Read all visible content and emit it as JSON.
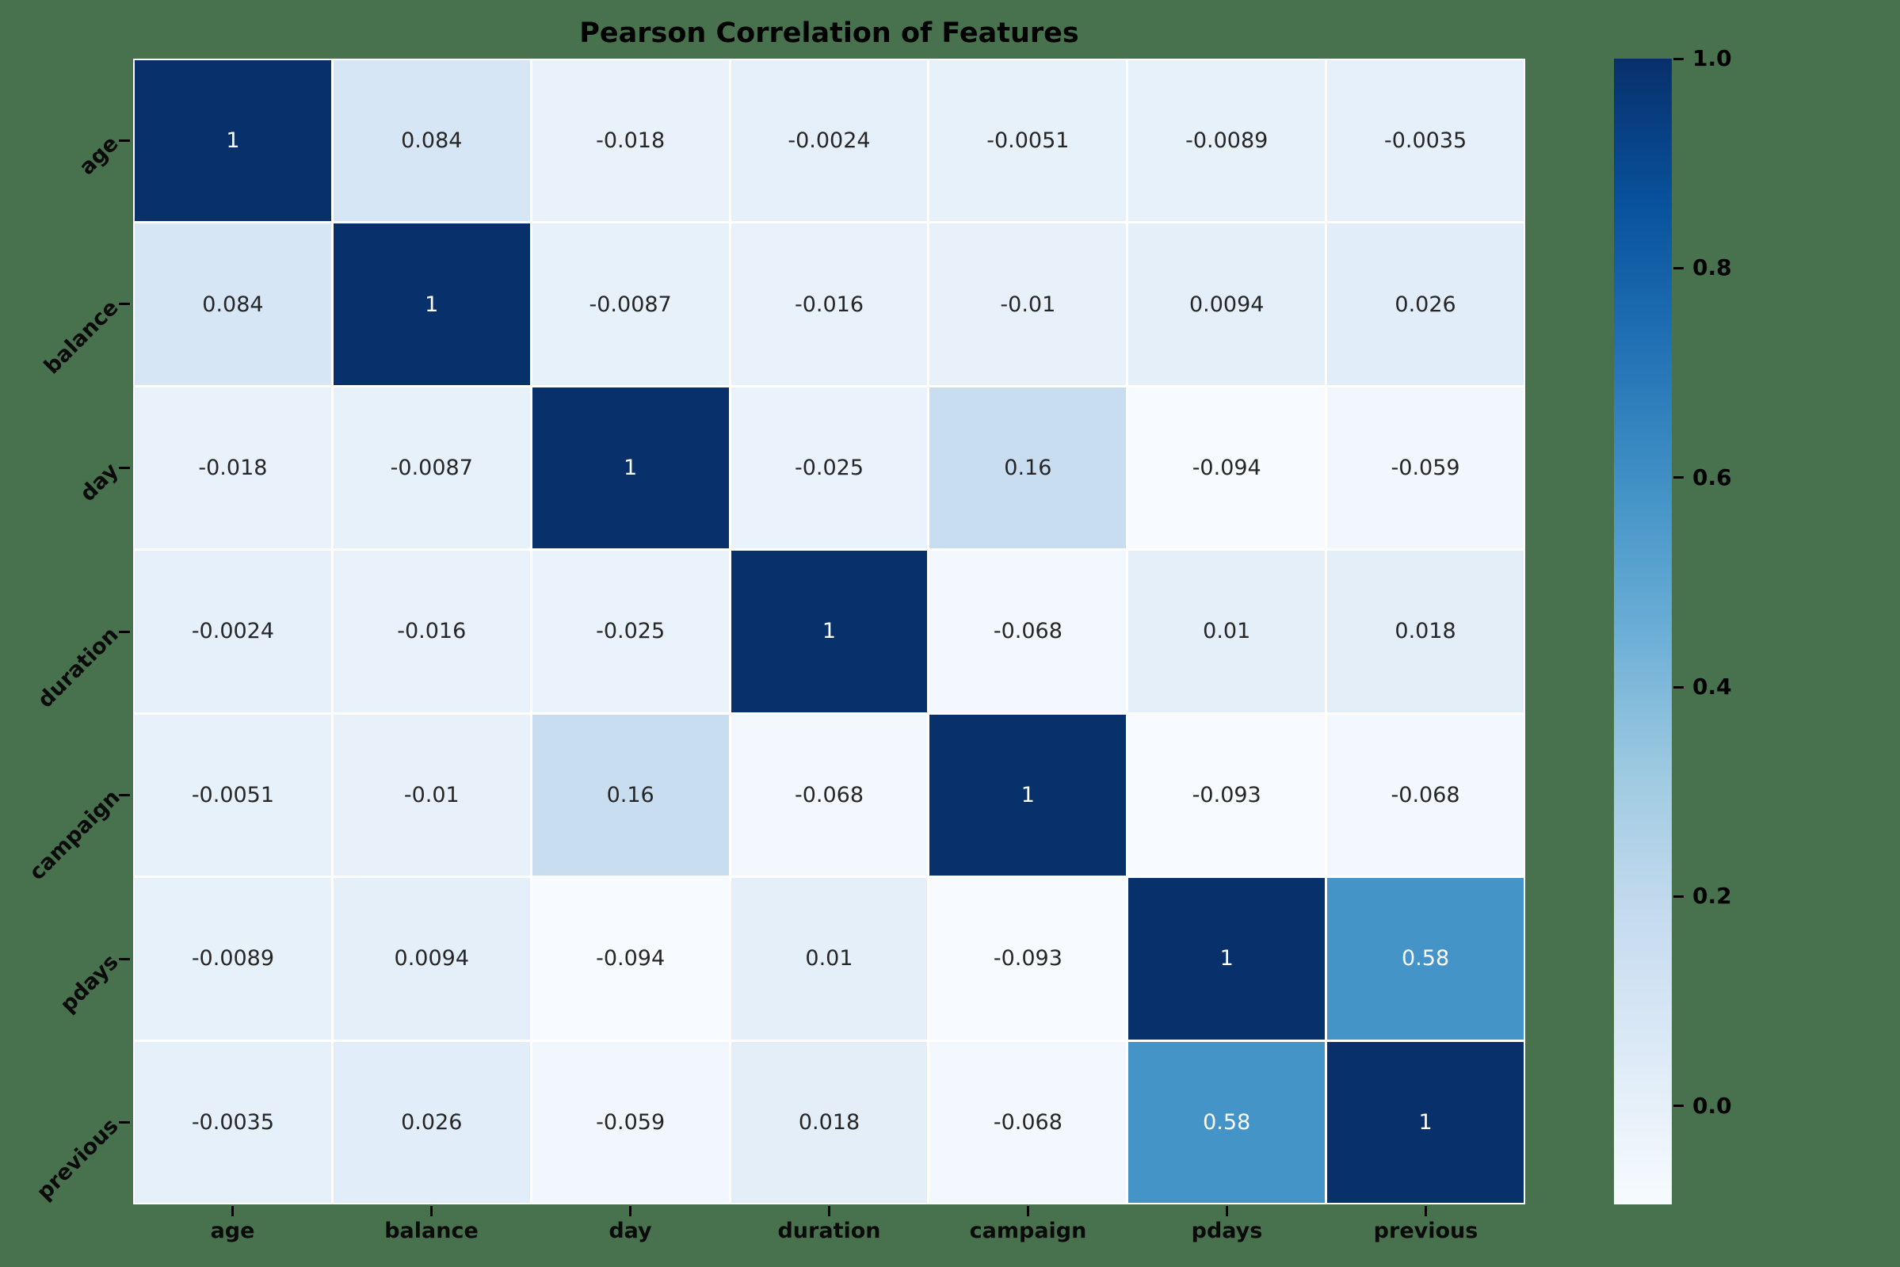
{
  "title": "Pearson Correlation of Features",
  "chart_data": {
    "type": "heatmap",
    "title": "Pearson Correlation of Features",
    "categories": [
      "age",
      "balance",
      "day",
      "duration",
      "campaign",
      "pdays",
      "previous"
    ],
    "matrix": [
      [
        1,
        0.084,
        -0.018,
        -0.0024,
        -0.0051,
        -0.0089,
        -0.0035
      ],
      [
        0.084,
        1,
        -0.0087,
        -0.016,
        -0.01,
        0.0094,
        0.026
      ],
      [
        -0.018,
        -0.0087,
        1,
        -0.025,
        0.16,
        -0.094,
        -0.059
      ],
      [
        -0.0024,
        -0.016,
        -0.025,
        1,
        -0.068,
        0.01,
        0.018
      ],
      [
        -0.0051,
        -0.01,
        0.16,
        -0.068,
        1,
        -0.093,
        -0.068
      ],
      [
        -0.0089,
        0.0094,
        -0.094,
        0.01,
        -0.093,
        1,
        0.58
      ],
      [
        -0.0035,
        0.026,
        -0.059,
        0.018,
        -0.068,
        0.58,
        1
      ]
    ],
    "cell_labels": [
      [
        "1",
        "0.084",
        "-0.018",
        "-0.0024",
        "-0.0051",
        "-0.0089",
        "-0.0035"
      ],
      [
        "0.084",
        "1",
        "-0.0087",
        "-0.016",
        "-0.01",
        "0.0094",
        "0.026"
      ],
      [
        "-0.018",
        "-0.0087",
        "1",
        "-0.025",
        "0.16",
        "-0.094",
        "-0.059"
      ],
      [
        "-0.0024",
        "-0.016",
        "-0.025",
        "1",
        "-0.068",
        "0.01",
        "0.018"
      ],
      [
        "-0.0051",
        "-0.01",
        "0.16",
        "-0.068",
        "1",
        "-0.093",
        "-0.068"
      ],
      [
        "-0.0089",
        "0.0094",
        "-0.094",
        "0.01",
        "-0.093",
        "1",
        "0.58"
      ],
      [
        "-0.0035",
        "0.026",
        "-0.059",
        "0.018",
        "-0.068",
        "0.58",
        "1"
      ]
    ],
    "colormap": "Blues",
    "vmin": -0.094,
    "vmax": 1.0,
    "grid": false,
    "legend_position": "right-colorbar",
    "colorbar_tick_values": [
      1.0,
      0.8,
      0.6,
      0.4,
      0.2,
      0.0
    ],
    "colorbar_tick_labels": [
      "1.0",
      "0.8",
      "0.6",
      "0.4",
      "0.2",
      "0.0"
    ]
  },
  "colors": {
    "page_background": "#48714E",
    "cell_gap": "#ffffff",
    "annotation_dark": "#262626",
    "annotation_light": "#ffffff",
    "tick_color": "#000000",
    "blues_colormap_stops": [
      "#f7fbff",
      "#deebf7",
      "#c6dbef",
      "#9ecae1",
      "#6baed6",
      "#4292c6",
      "#2171b5",
      "#08519c",
      "#08306b"
    ]
  }
}
